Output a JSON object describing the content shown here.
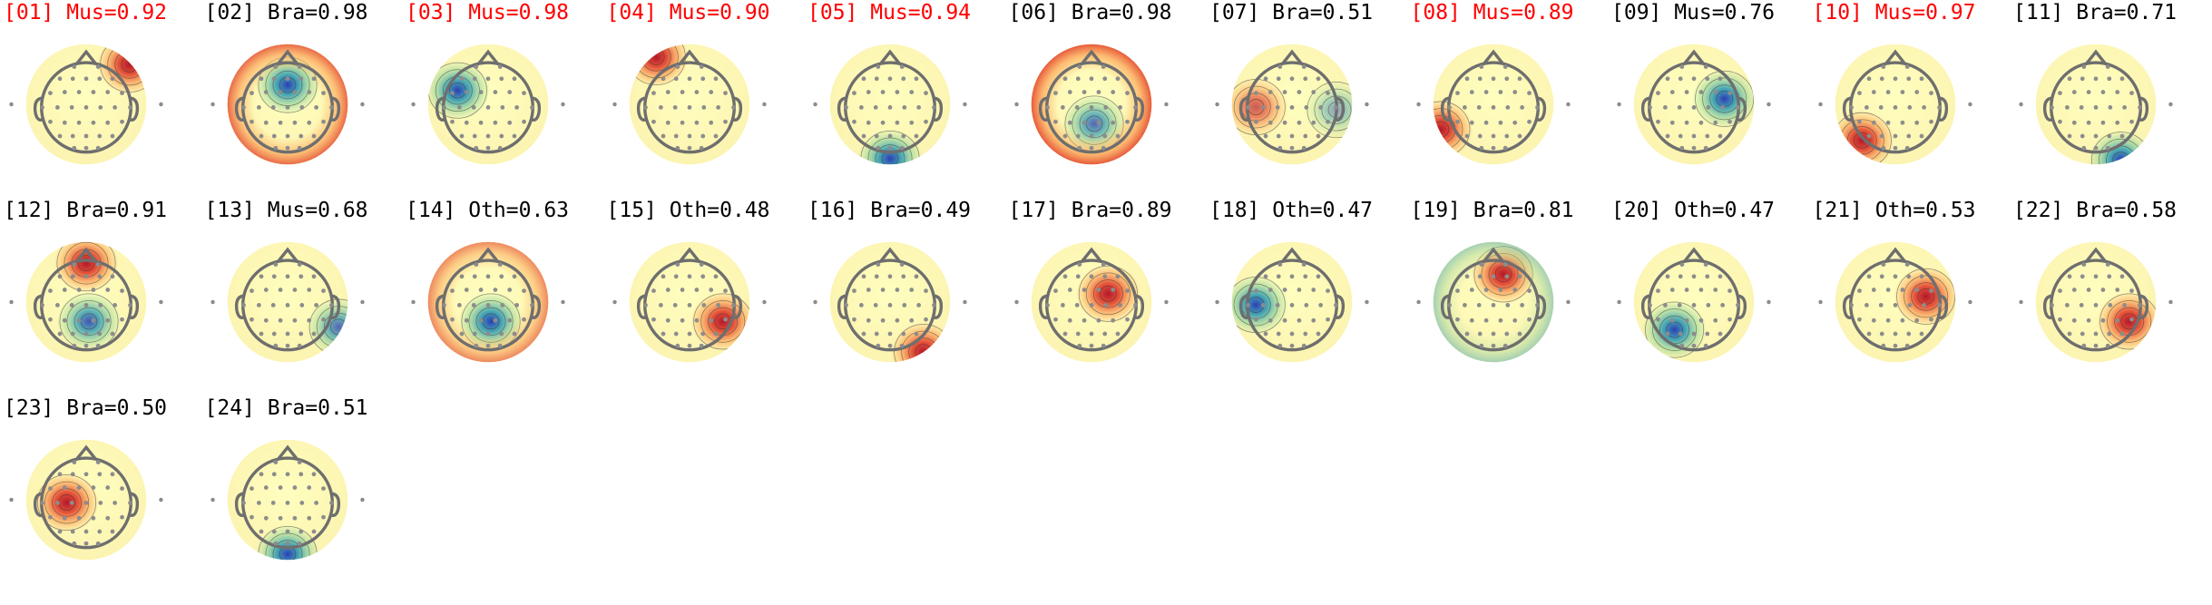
{
  "colors": {
    "flagged_label": "#ff0000",
    "normal_label": "#000000",
    "colormap": [
      "#2c3fb4",
      "#3ea2b4",
      "#a6dba0",
      "#ffffbf",
      "#fdae61",
      "#e34a33",
      "#b2182b"
    ],
    "electrode": "#8c8c8c",
    "head_outline": "#6e6e6e"
  },
  "components": [
    {
      "label": "[01] Mus=0.92",
      "flagged": true,
      "cls": "Mus",
      "score": 0.92,
      "blobs": [
        {
          "pos": "right-frontal",
          "polarity": "positive",
          "strength": 1.0
        }
      ]
    },
    {
      "label": "[02] Bra=0.98",
      "flagged": false,
      "cls": "Bra",
      "score": 0.98,
      "blobs": [
        {
          "pos": "central",
          "polarity": "negative",
          "strength": 1.0
        },
        {
          "pos": "rim",
          "polarity": "positive",
          "strength": 0.9
        }
      ]
    },
    {
      "label": "[03] Mus=0.98",
      "flagged": true,
      "cls": "Mus",
      "score": 0.98,
      "blobs": [
        {
          "pos": "left-frontal",
          "polarity": "negative",
          "strength": 1.0
        }
      ]
    },
    {
      "label": "[04] Mus=0.90",
      "flagged": true,
      "cls": "Mus",
      "score": 0.9,
      "blobs": [
        {
          "pos": "left-frontal-edge",
          "polarity": "positive",
          "strength": 1.0
        }
      ]
    },
    {
      "label": "[05] Mus=0.94",
      "flagged": true,
      "cls": "Mus",
      "score": 0.94,
      "blobs": [
        {
          "pos": "occipital-edge",
          "polarity": "negative",
          "strength": 1.0
        }
      ]
    },
    {
      "label": "[06] Bra=0.98",
      "flagged": false,
      "cls": "Bra",
      "score": 0.98,
      "blobs": [
        {
          "pos": "parietal",
          "polarity": "negative",
          "strength": 0.8
        },
        {
          "pos": "temporal-sides",
          "polarity": "positive",
          "strength": 1.0
        }
      ]
    },
    {
      "label": "[07] Bra=0.51",
      "flagged": false,
      "cls": "Bra",
      "score": 0.51,
      "blobs": [
        {
          "pos": "left-temporal",
          "polarity": "positive",
          "strength": 0.7
        },
        {
          "pos": "right-temporal",
          "polarity": "negative",
          "strength": 0.5
        }
      ]
    },
    {
      "label": "[08] Mus=0.89",
      "flagged": true,
      "cls": "Mus",
      "score": 0.89,
      "blobs": [
        {
          "pos": "left-temporal-edge",
          "polarity": "positive",
          "strength": 1.0
        }
      ]
    },
    {
      "label": "[09] Mus=0.76",
      "flagged": false,
      "cls": "Mus",
      "score": 0.76,
      "blobs": [
        {
          "pos": "right-central",
          "polarity": "negative",
          "strength": 1.0
        }
      ]
    },
    {
      "label": "[10] Mus=0.97",
      "flagged": true,
      "cls": "Mus",
      "score": 0.97,
      "blobs": [
        {
          "pos": "left-occipital",
          "polarity": "positive",
          "strength": 1.0
        }
      ]
    },
    {
      "label": "[11] Bra=0.71",
      "flagged": false,
      "cls": "Bra",
      "score": 0.71,
      "blobs": [
        {
          "pos": "right-occipital-edge",
          "polarity": "negative",
          "strength": 1.0
        }
      ]
    },
    {
      "label": "[12] Bra=0.91",
      "flagged": false,
      "cls": "Bra",
      "score": 0.91,
      "blobs": [
        {
          "pos": "frontal",
          "polarity": "positive",
          "strength": 1.0
        },
        {
          "pos": "parietal",
          "polarity": "negative",
          "strength": 0.9
        }
      ]
    },
    {
      "label": "[13] Mus=0.68",
      "flagged": false,
      "cls": "Mus",
      "score": 0.68,
      "blobs": [
        {
          "pos": "right-temporal-low",
          "polarity": "negative",
          "strength": 0.8
        }
      ]
    },
    {
      "label": "[14] Oth=0.63",
      "flagged": false,
      "cls": "Oth",
      "score": 0.63,
      "blobs": [
        {
          "pos": "parietal",
          "polarity": "negative",
          "strength": 1.0
        },
        {
          "pos": "rim",
          "polarity": "positive",
          "strength": 0.7
        }
      ]
    },
    {
      "label": "[15] Oth=0.48",
      "flagged": false,
      "cls": "Oth",
      "score": 0.48,
      "blobs": [
        {
          "pos": "right-parietal",
          "polarity": "positive",
          "strength": 1.0
        }
      ]
    },
    {
      "label": "[16] Bra=0.49",
      "flagged": false,
      "cls": "Bra",
      "score": 0.49,
      "blobs": [
        {
          "pos": "right-occipital",
          "polarity": "positive",
          "strength": 1.0
        }
      ]
    },
    {
      "label": "[17] Bra=0.89",
      "flagged": false,
      "cls": "Bra",
      "score": 0.89,
      "blobs": [
        {
          "pos": "right-centro-frontal",
          "polarity": "positive",
          "strength": 1.0
        }
      ]
    },
    {
      "label": "[18] Oth=0.47",
      "flagged": false,
      "cls": "Oth",
      "score": 0.47,
      "blobs": [
        {
          "pos": "left-temporal",
          "polarity": "negative",
          "strength": 1.0
        }
      ]
    },
    {
      "label": "[19] Bra=0.81",
      "flagged": false,
      "cls": "Bra",
      "score": 0.81,
      "blobs": [
        {
          "pos": "frontal-right",
          "polarity": "positive",
          "strength": 1.0
        },
        {
          "pos": "rim",
          "polarity": "negative",
          "strength": 0.5
        }
      ]
    },
    {
      "label": "[20] Oth=0.47",
      "flagged": false,
      "cls": "Oth",
      "score": 0.47,
      "blobs": [
        {
          "pos": "left-parietal",
          "polarity": "negative",
          "strength": 1.0
        }
      ]
    },
    {
      "label": "[21] Oth=0.53",
      "flagged": false,
      "cls": "Oth",
      "score": 0.53,
      "blobs": [
        {
          "pos": "right-central",
          "polarity": "positive",
          "strength": 1.0
        }
      ]
    },
    {
      "label": "[22] Bra=0.58",
      "flagged": false,
      "cls": "Bra",
      "score": 0.58,
      "blobs": [
        {
          "pos": "right-parietal",
          "polarity": "positive",
          "strength": 1.0
        }
      ]
    },
    {
      "label": "[23] Bra=0.50",
      "flagged": false,
      "cls": "Bra",
      "score": 0.5,
      "blobs": [
        {
          "pos": "left-central",
          "polarity": "positive",
          "strength": 1.0
        }
      ]
    },
    {
      "label": "[24] Bra=0.51",
      "flagged": false,
      "cls": "Bra",
      "score": 0.51,
      "blobs": [
        {
          "pos": "occipital-edge",
          "polarity": "negative",
          "strength": 1.0
        }
      ]
    }
  ]
}
